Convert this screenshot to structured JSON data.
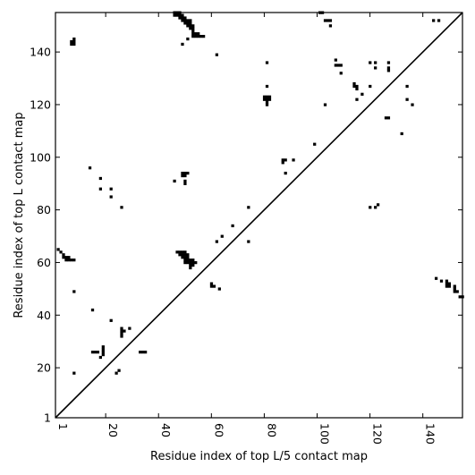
{
  "chart_data": {
    "type": "scatter",
    "title": "",
    "xlabel": "Residue index of top L/5 contact map",
    "ylabel": "Residue index of top L contact map",
    "xlim": [
      1,
      155
    ],
    "ylim": [
      1,
      155
    ],
    "xticks": [
      1,
      20,
      40,
      60,
      80,
      100,
      120,
      140
    ],
    "yticks": [
      1,
      20,
      40,
      60,
      80,
      100,
      120,
      140
    ],
    "grid": false,
    "diagonal": true,
    "upper_triangle_points": [
      [
        7,
        143
      ],
      [
        8,
        143
      ],
      [
        7,
        144
      ],
      [
        8,
        144
      ],
      [
        8,
        145
      ],
      [
        46,
        155
      ],
      [
        47,
        155
      ],
      [
        48,
        155
      ],
      [
        46,
        154
      ],
      [
        47,
        154
      ],
      [
        48,
        154
      ],
      [
        49,
        154
      ],
      [
        48,
        153
      ],
      [
        49,
        153
      ],
      [
        50,
        153
      ],
      [
        49,
        152
      ],
      [
        50,
        152
      ],
      [
        51,
        152
      ],
      [
        52,
        152
      ],
      [
        50,
        151
      ],
      [
        51,
        151
      ],
      [
        52,
        151
      ],
      [
        51,
        150
      ],
      [
        52,
        150
      ],
      [
        53,
        150
      ],
      [
        52,
        149
      ],
      [
        53,
        149
      ],
      [
        53,
        148
      ],
      [
        53,
        147
      ],
      [
        54,
        147
      ],
      [
        55,
        147
      ],
      [
        53,
        146
      ],
      [
        54,
        146
      ],
      [
        55,
        146
      ],
      [
        56,
        146
      ],
      [
        57,
        146
      ],
      [
        49,
        143
      ],
      [
        51,
        145
      ],
      [
        62,
        139
      ],
      [
        81,
        136
      ],
      [
        81,
        127
      ],
      [
        80,
        123
      ],
      [
        81,
        123
      ],
      [
        82,
        123
      ],
      [
        80,
        122
      ],
      [
        81,
        122
      ],
      [
        82,
        122
      ],
      [
        81,
        121
      ],
      [
        81,
        120
      ],
      [
        101,
        155
      ],
      [
        102,
        155
      ],
      [
        103,
        152
      ],
      [
        104,
        152
      ],
      [
        105,
        152
      ],
      [
        105,
        150
      ],
      [
        107,
        137
      ],
      [
        107,
        135
      ],
      [
        108,
        135
      ],
      [
        109,
        135
      ],
      [
        109,
        132
      ],
      [
        103,
        120
      ],
      [
        114,
        128
      ],
      [
        114,
        127
      ],
      [
        115,
        127
      ],
      [
        115,
        126
      ],
      [
        117,
        124
      ],
      [
        115,
        122
      ],
      [
        120,
        136
      ],
      [
        122,
        136
      ],
      [
        122,
        134
      ],
      [
        120,
        127
      ],
      [
        127,
        136
      ],
      [
        127,
        134
      ],
      [
        127,
        133
      ],
      [
        126,
        115
      ],
      [
        127,
        115
      ],
      [
        134,
        127
      ],
      [
        134,
        122
      ],
      [
        136,
        120
      ],
      [
        144,
        152
      ],
      [
        146,
        152
      ],
      [
        14,
        96
      ],
      [
        18,
        92
      ],
      [
        18,
        88
      ],
      [
        22,
        88
      ],
      [
        22,
        85
      ],
      [
        26,
        81
      ],
      [
        46,
        91
      ],
      [
        49,
        94
      ],
      [
        50,
        94
      ],
      [
        51,
        94
      ],
      [
        49,
        93
      ],
      [
        50,
        93
      ],
      [
        50,
        91
      ],
      [
        50,
        90
      ],
      [
        74,
        81
      ],
      [
        87,
        99
      ],
      [
        88,
        99
      ],
      [
        87,
        98
      ],
      [
        91,
        99
      ],
      [
        88,
        94
      ],
      [
        99,
        105
      ],
      [
        132,
        109
      ],
      [
        68,
        74
      ],
      [
        64,
        70
      ],
      [
        62,
        68
      ],
      [
        74,
        68
      ],
      [
        120,
        81
      ],
      [
        122,
        81
      ],
      [
        123,
        82
      ]
    ],
    "lower_triangle_points": [
      [
        2,
        65
      ],
      [
        3,
        64
      ],
      [
        4,
        63
      ],
      [
        4,
        62
      ],
      [
        5,
        62
      ],
      [
        6,
        62
      ],
      [
        5,
        61
      ],
      [
        6,
        61
      ],
      [
        7,
        61
      ],
      [
        8,
        61
      ],
      [
        8,
        49
      ],
      [
        15,
        42
      ],
      [
        8,
        18
      ],
      [
        47,
        64
      ],
      [
        48,
        64
      ],
      [
        49,
        64
      ],
      [
        50,
        64
      ],
      [
        48,
        63
      ],
      [
        49,
        63
      ],
      [
        50,
        63
      ],
      [
        51,
        63
      ],
      [
        49,
        62
      ],
      [
        50,
        62
      ],
      [
        51,
        62
      ],
      [
        50,
        61
      ],
      [
        51,
        61
      ],
      [
        52,
        61
      ],
      [
        53,
        61
      ],
      [
        50,
        60
      ],
      [
        51,
        60
      ],
      [
        52,
        60
      ],
      [
        53,
        60
      ],
      [
        54,
        60
      ],
      [
        52,
        59
      ],
      [
        53,
        59
      ],
      [
        52,
        58
      ],
      [
        60,
        52
      ],
      [
        60,
        51
      ],
      [
        61,
        51
      ],
      [
        63,
        50
      ],
      [
        22,
        38
      ],
      [
        15,
        26
      ],
      [
        16,
        26
      ],
      [
        17,
        26
      ],
      [
        19,
        28
      ],
      [
        19,
        27
      ],
      [
        19,
        26
      ],
      [
        19,
        25
      ],
      [
        18,
        24
      ],
      [
        26,
        35
      ],
      [
        26,
        34
      ],
      [
        26,
        33
      ],
      [
        27,
        34
      ],
      [
        26,
        32
      ],
      [
        29,
        35
      ],
      [
        24,
        18
      ],
      [
        25,
        19
      ],
      [
        33,
        26
      ],
      [
        34,
        26
      ],
      [
        35,
        26
      ],
      [
        145,
        54
      ],
      [
        147,
        53
      ],
      [
        149,
        53
      ],
      [
        149,
        52
      ],
      [
        150,
        52
      ],
      [
        149,
        51
      ],
      [
        150,
        51
      ],
      [
        152,
        51
      ],
      [
        152,
        50
      ],
      [
        152,
        49
      ],
      [
        153,
        49
      ],
      [
        154,
        47
      ],
      [
        155,
        47
      ]
    ]
  }
}
